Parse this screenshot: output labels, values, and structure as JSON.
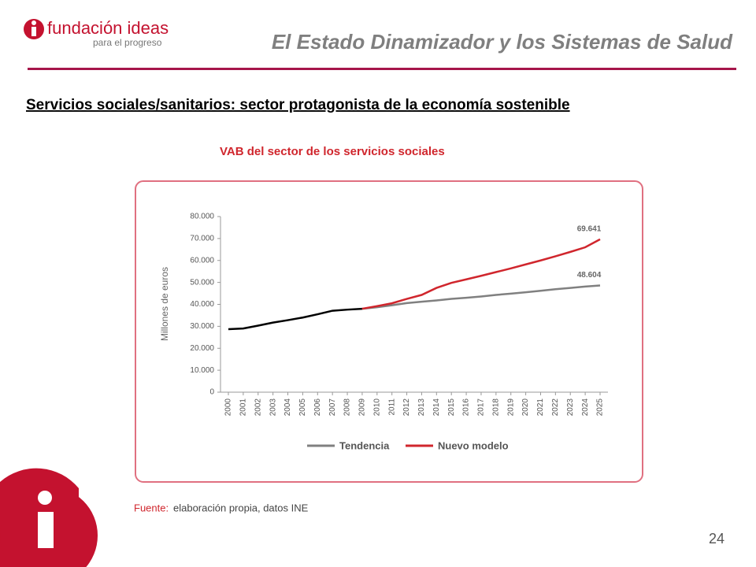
{
  "header": {
    "org": "fundación ideas",
    "tagline": "para el progreso",
    "title": "El Estado Dinamizador y los Sistemas de Salud"
  },
  "subtitle": "Servicios sociales/sanitarios: sector protagonista de la economía sostenible",
  "chart_data": {
    "type": "line",
    "title": "VAB del sector de los servicios sociales",
    "y_label": "Millones de euros",
    "categories": [
      "2000",
      "2001",
      "2002",
      "2003",
      "2004",
      "2005",
      "2006",
      "2007",
      "2008",
      "2009",
      "2010",
      "2011",
      "2012",
      "2013",
      "2014",
      "2015",
      "2016",
      "2017",
      "2018",
      "2019",
      "2020",
      "2021",
      "2022",
      "2023",
      "2024",
      "2025"
    ],
    "series": [
      {
        "color": "#000000",
        "values": [
          28700,
          29000,
          30300,
          31700,
          32800,
          34000,
          35500,
          37100,
          37600,
          38000,
          null,
          null,
          null,
          null,
          null,
          null,
          null,
          null,
          null,
          null,
          null,
          null,
          null,
          null,
          null,
          null
        ]
      },
      {
        "name": "Tendencia",
        "color": "#808080",
        "values": [
          null,
          null,
          null,
          null,
          null,
          null,
          null,
          null,
          null,
          38000,
          38700,
          39600,
          40600,
          41200,
          41800,
          42500,
          43000,
          43600,
          44300,
          44900,
          45500,
          46200,
          46900,
          47500,
          48100,
          48604
        ],
        "value_labels": [
          null,
          null,
          null,
          null,
          null,
          null,
          null,
          null,
          null,
          null,
          null,
          null,
          null,
          null,
          null,
          null,
          null,
          null,
          null,
          null,
          null,
          null,
          null,
          null,
          null,
          "48.604"
        ]
      },
      {
        "name": "Nuevo modelo",
        "color": "#d0262d",
        "values": [
          null,
          null,
          null,
          null,
          null,
          null,
          null,
          null,
          null,
          38000,
          39200,
          40500,
          42500,
          44300,
          47500,
          49800,
          51400,
          53000,
          54700,
          56400,
          58200,
          60000,
          61900,
          63900,
          66000,
          69641
        ],
        "value_labels": [
          null,
          null,
          null,
          null,
          null,
          null,
          null,
          null,
          null,
          null,
          null,
          null,
          null,
          null,
          null,
          null,
          null,
          null,
          null,
          null,
          null,
          null,
          null,
          null,
          null,
          "69.641"
        ]
      }
    ],
    "ylim": [
      0,
      80000
    ],
    "yticks": [
      0,
      {
        "value": 10000,
        "label": "10.000"
      },
      {
        "value": 20000,
        "label": "20.000"
      },
      {
        "value": 30000,
        "label": "30.000"
      },
      {
        "value": 40000,
        "label": "40.000"
      },
      {
        "value": 50000,
        "label": "50.000"
      },
      {
        "value": 60000,
        "label": "60.000"
      },
      {
        "value": 70000,
        "label": "70.000"
      },
      {
        "value": 80000,
        "label": "80.000"
      }
    ],
    "grid": true
  },
  "source": {
    "label": "Fuente:",
    "text": "elaboración propia, datos INE"
  },
  "page_number": "24"
}
